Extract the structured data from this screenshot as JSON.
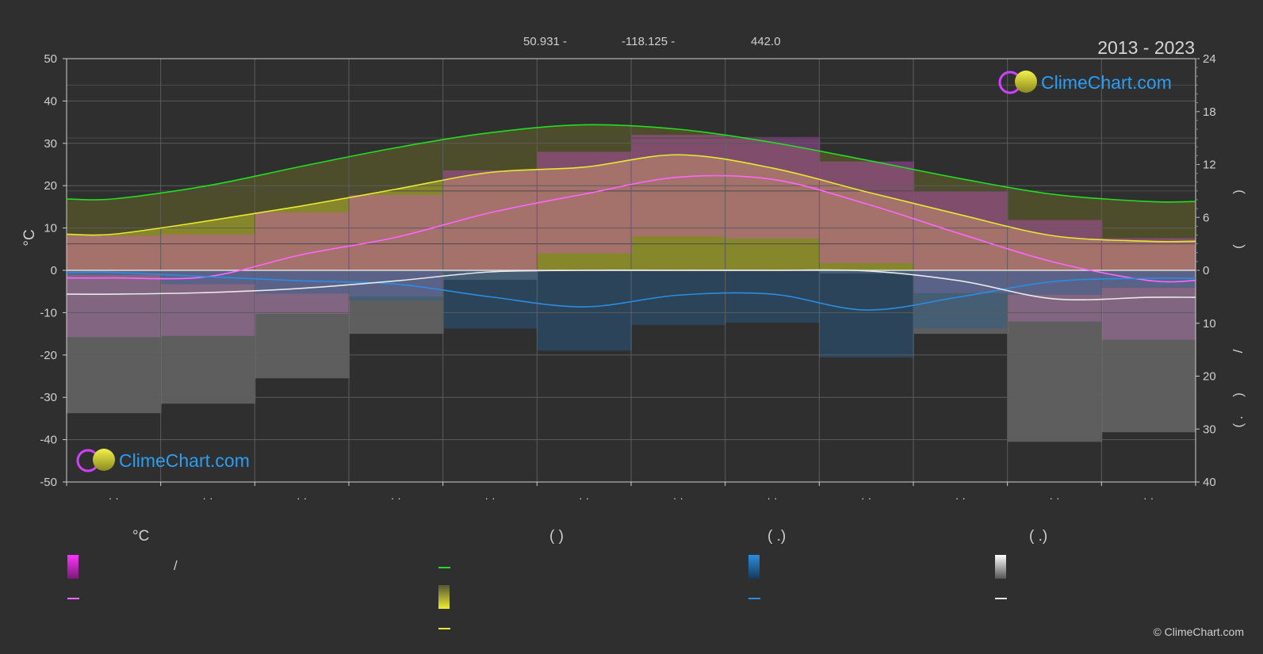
{
  "header": {
    "coords": "50.931 -",
    "lon": "-118.125 -",
    "elevation": "442.0",
    "period": "2013 - 2023"
  },
  "watermark": {
    "brand": "ClimeChart.com",
    "copyright": "© ClimeChart.com"
  },
  "axes": {
    "left_unit": "°C",
    "left_ticks": [
      "50",
      "40",
      "30",
      "20",
      "10",
      "0",
      "-10",
      "-20",
      "-30",
      "-40",
      "-50"
    ],
    "right_top_ticks": [
      "24",
      "18",
      "12",
      "6",
      "0"
    ],
    "right_bottom_ticks": [
      "10",
      "20",
      "30",
      "40"
    ],
    "right_title_parts": [
      ")",
      "(",
      "/",
      ")",
      "(  ."
    ],
    "month_ticks": [
      "· ·",
      "· ·",
      "· ·",
      "· ·",
      "· ·",
      "· ·",
      "· ·",
      "· ·",
      "· ·",
      "· ·",
      "· ·",
      "· ·"
    ]
  },
  "legend": {
    "col1_head": "°C",
    "col1_slash": "/",
    "col2_head": "(           )",
    "col3_head": "(    .)",
    "col4_head": "(    .)"
  },
  "colors": {
    "background": "#2f2f2f",
    "grid": "#5a5a5a",
    "daylight": "#22dd22",
    "sunshine": "#e8e833",
    "max_temp": "#ff66ff",
    "precip": "#2a8de0",
    "snow": "#e8e8e8",
    "brand": "#2a9df4"
  },
  "chart_data": {
    "type": "line",
    "x": [
      "Jan",
      "Feb",
      "Mar",
      "Apr",
      "May",
      "Jun",
      "Jul",
      "Aug",
      "Sep",
      "Oct",
      "Nov",
      "Dec"
    ],
    "temp_ylim": [
      -50,
      50
    ],
    "hours_ylim": [
      0,
      24
    ],
    "mm_ylim": [
      0,
      40
    ],
    "series": [
      {
        "key": "daylight_hours",
        "axis": "hours",
        "color": "#22dd22",
        "values": [
          8.1,
          9.6,
          11.8,
          13.9,
          15.6,
          16.5,
          16.0,
          14.5,
          12.5,
          10.4,
          8.6,
          7.8
        ]
      },
      {
        "key": "sunshine_hours",
        "axis": "hours",
        "color": "#e8e833",
        "values": [
          4.1,
          5.6,
          7.3,
          9.2,
          11.1,
          11.7,
          13.1,
          11.6,
          8.9,
          6.3,
          3.9,
          3.3
        ]
      },
      {
        "key": "avg_temp",
        "axis": "temp",
        "color": "#ff66ff",
        "values": [
          -1.8,
          -1.5,
          3.7,
          7.8,
          13.6,
          18.0,
          22.0,
          21.5,
          15.7,
          8.6,
          1.9,
          -2.4
        ]
      },
      {
        "key": "precip_mm",
        "axis": "mm_inverted",
        "color": "#2a8de0",
        "values": [
          0.4,
          1.2,
          2.0,
          2.6,
          5.0,
          6.9,
          4.7,
          4.5,
          7.5,
          5.0,
          2.1,
          1.5
        ]
      },
      {
        "key": "snow_mm",
        "axis": "mm_inverted",
        "color": "#e8e8e8",
        "values": [
          4.5,
          4.2,
          3.4,
          2.0,
          0.3,
          0.0,
          0.0,
          0.0,
          0.1,
          2.0,
          5.4,
          5.1
        ]
      }
    ]
  }
}
